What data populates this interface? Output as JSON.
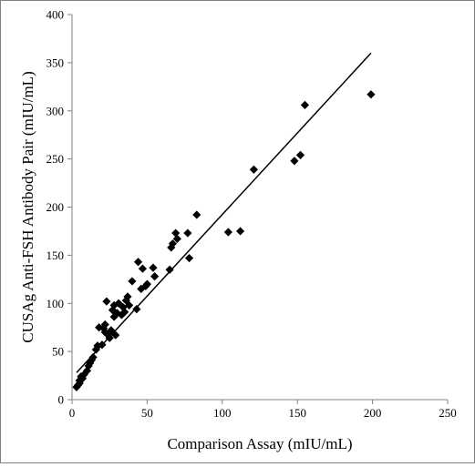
{
  "chart_data": {
    "type": "scatter",
    "title": "",
    "xlabel": "Comparison Assay (mIU/mL)",
    "ylabel": "CUSAg Anti-FSH Antibody Pair (mIU/mL)",
    "xlim": [
      0,
      250
    ],
    "ylim": [
      0,
      400
    ],
    "x_ticks": [
      "0",
      "50",
      "100",
      "150",
      "200",
      "250"
    ],
    "y_ticks": [
      "0",
      "50",
      "100",
      "150",
      "200",
      "250",
      "300",
      "350",
      "400"
    ],
    "grid": false,
    "legend": "none",
    "marker": "diamond",
    "colors": {
      "marker": "#000000",
      "trendline": "#000000",
      "axis": "#808080",
      "frame": "#7f7f7f"
    },
    "trendline": {
      "x": [
        3,
        199
      ],
      "y": [
        28,
        360
      ]
    },
    "points": [
      {
        "x": 3,
        "y": 13
      },
      {
        "x": 4,
        "y": 15
      },
      {
        "x": 5,
        "y": 17
      },
      {
        "x": 5,
        "y": 20
      },
      {
        "x": 6,
        "y": 24
      },
      {
        "x": 7,
        "y": 22
      },
      {
        "x": 8,
        "y": 26
      },
      {
        "x": 10,
        "y": 30
      },
      {
        "x": 11,
        "y": 35
      },
      {
        "x": 12,
        "y": 38
      },
      {
        "x": 13,
        "y": 41
      },
      {
        "x": 14,
        "y": 44
      },
      {
        "x": 16,
        "y": 52
      },
      {
        "x": 17,
        "y": 56
      },
      {
        "x": 18,
        "y": 75
      },
      {
        "x": 20,
        "y": 57
      },
      {
        "x": 21,
        "y": 74
      },
      {
        "x": 22,
        "y": 70
      },
      {
        "x": 22,
        "y": 78
      },
      {
        "x": 23,
        "y": 102
      },
      {
        "x": 24,
        "y": 67
      },
      {
        "x": 25,
        "y": 64
      },
      {
        "x": 26,
        "y": 72
      },
      {
        "x": 27,
        "y": 93
      },
      {
        "x": 28,
        "y": 86
      },
      {
        "x": 28,
        "y": 98
      },
      {
        "x": 29,
        "y": 67
      },
      {
        "x": 30,
        "y": 90
      },
      {
        "x": 31,
        "y": 100
      },
      {
        "x": 33,
        "y": 88
      },
      {
        "x": 34,
        "y": 96
      },
      {
        "x": 35,
        "y": 91
      },
      {
        "x": 36,
        "y": 103
      },
      {
        "x": 37,
        "y": 107
      },
      {
        "x": 38,
        "y": 98
      },
      {
        "x": 40,
        "y": 123
      },
      {
        "x": 43,
        "y": 94
      },
      {
        "x": 44,
        "y": 143
      },
      {
        "x": 46,
        "y": 115
      },
      {
        "x": 47,
        "y": 136
      },
      {
        "x": 49,
        "y": 118
      },
      {
        "x": 50,
        "y": 120
      },
      {
        "x": 54,
        "y": 137
      },
      {
        "x": 55,
        "y": 128
      },
      {
        "x": 65,
        "y": 135
      },
      {
        "x": 66,
        "y": 158
      },
      {
        "x": 67,
        "y": 162
      },
      {
        "x": 69,
        "y": 173
      },
      {
        "x": 70,
        "y": 167
      },
      {
        "x": 77,
        "y": 173
      },
      {
        "x": 78,
        "y": 147
      },
      {
        "x": 83,
        "y": 192
      },
      {
        "x": 104,
        "y": 174
      },
      {
        "x": 112,
        "y": 175
      },
      {
        "x": 121,
        "y": 239
      },
      {
        "x": 148,
        "y": 248
      },
      {
        "x": 152,
        "y": 254
      },
      {
        "x": 155,
        "y": 306
      },
      {
        "x": 199,
        "y": 317
      }
    ]
  }
}
